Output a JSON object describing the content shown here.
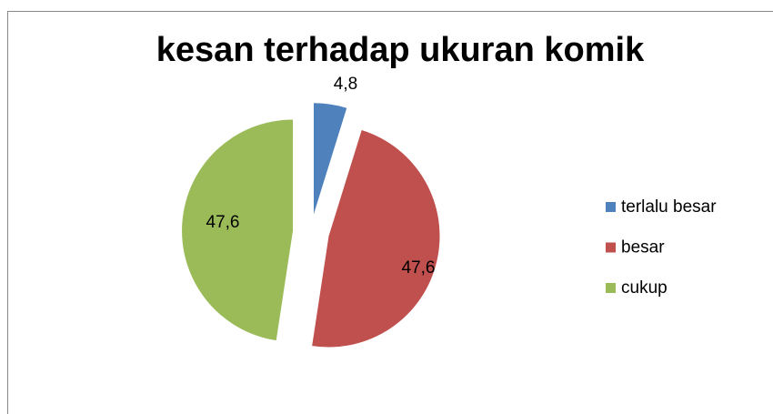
{
  "chart_data": {
    "type": "pie",
    "title": "kesan terhadap ukuran komik",
    "categories": [
      "terlalu besar",
      "besar",
      "cukup"
    ],
    "values": [
      4.8,
      47.6,
      47.6
    ],
    "value_labels": [
      "4,8",
      "47,6",
      "47,6"
    ],
    "colors": [
      "#4f81bd",
      "#c0504d",
      "#9bbb59"
    ],
    "legend": "right"
  }
}
